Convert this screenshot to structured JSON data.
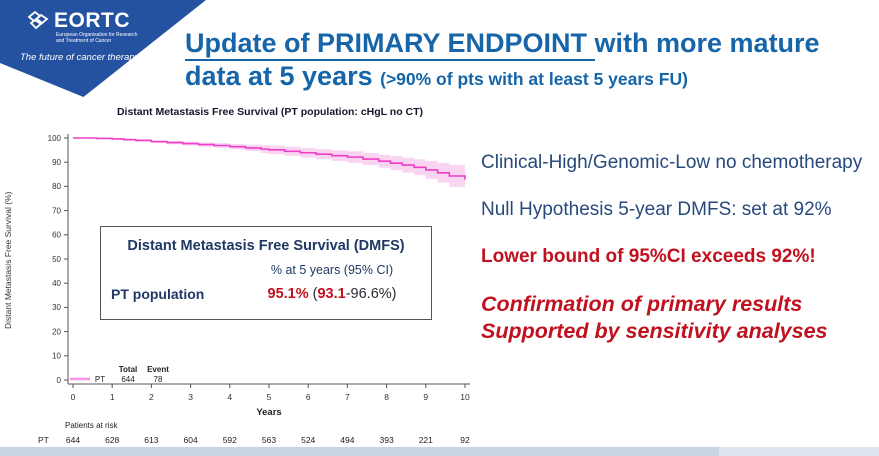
{
  "slide": {
    "logo": {
      "name": "EORTC",
      "subtext": "European Organisation for Research and Treatment of Cancer",
      "tagline": "The future of cancer therapy"
    },
    "title": {
      "underlined": "Update of PRIMARY ENDPOINT ",
      "rest_line1": "with more mature",
      "line2": "data at 5 years ",
      "line2_small": "(>90% of pts with at least 5 years FU)"
    },
    "right_panel": {
      "line1": "Clinical-High/Genomic-Low no chemotherapy",
      "line2": "Null Hypothesis 5-year DMFS: set at 92%",
      "line3": "Lower bound of 95%CI exceeds 92%!",
      "conclusion_line1": "Confirmation of primary results",
      "conclusion_line2": "Supported by sensitivity analyses"
    },
    "result_box": {
      "title": "Distant Metastasis Free Survival (DMFS)",
      "subtitle": "% at 5 years (95% CI)",
      "row_label": "PT population",
      "value_main": "95.1%",
      "value_open": " (",
      "value_lower": "93.1",
      "value_rest": "-96.6%)"
    },
    "colors": {
      "banner_blue": "#2452A0",
      "title_blue": "#1565A8",
      "navy_text": "#27497C",
      "red_text": "#C0111F",
      "box_navy": "#1F3864"
    }
  },
  "chart_data": {
    "type": "line",
    "subtype": "kaplan-meier-step",
    "title": "Distant Metastasis Free Survival (PT population: cHgL no CT)",
    "xlabel": "Years",
    "ylabel": "Distant Metastasis Free Survival (%)",
    "xlim": [
      0,
      10
    ],
    "ylim": [
      0,
      100
    ],
    "xticks": [
      0,
      1,
      2,
      3,
      4,
      5,
      6,
      7,
      8,
      9,
      10
    ],
    "yticks": [
      0,
      10,
      20,
      30,
      40,
      50,
      60,
      70,
      80,
      90,
      100
    ],
    "grid": false,
    "series": [
      {
        "name": "PT",
        "color": "#EE3FC8",
        "band_color": "#FAD5F2",
        "x": [
          0,
          0.6,
          1.0,
          1.3,
          1.6,
          2.0,
          2.4,
          2.8,
          3.2,
          3.6,
          4.0,
          4.4,
          4.8,
          5.0,
          5.4,
          5.8,
          6.2,
          6.6,
          7.0,
          7.4,
          7.8,
          8.1,
          8.4,
          8.7,
          9.0,
          9.3,
          9.6,
          10.0
        ],
        "y": [
          100,
          99.8,
          99.6,
          99.3,
          99.0,
          98.5,
          98.1,
          97.7,
          97.3,
          96.9,
          96.4,
          95.9,
          95.4,
          95.1,
          94.5,
          93.9,
          93.3,
          92.7,
          92.1,
          91.3,
          90.4,
          89.6,
          88.8,
          87.9,
          86.8,
          85.6,
          84.3,
          82.8
        ],
        "ci_half": [
          0.1,
          0.2,
          0.3,
          0.4,
          0.5,
          0.6,
          0.7,
          0.8,
          0.9,
          1.0,
          1.1,
          1.3,
          1.6,
          1.75,
          1.9,
          2.0,
          2.1,
          2.2,
          2.4,
          2.5,
          2.7,
          2.9,
          3.1,
          3.3,
          3.7,
          4.1,
          4.6,
          5.2
        ]
      }
    ],
    "legend": {
      "position": "inside-bottom-left",
      "headers": [
        "Total",
        "Event"
      ],
      "rows": [
        {
          "name": "PT",
          "total": "644",
          "event": "78"
        }
      ]
    },
    "risk_table": {
      "label": "Patients at risk",
      "rows": [
        {
          "name": "PT",
          "values": [
            "644",
            "628",
            "613",
            "604",
            "592",
            "563",
            "524",
            "494",
            "393",
            "221",
            "92"
          ]
        }
      ]
    }
  }
}
